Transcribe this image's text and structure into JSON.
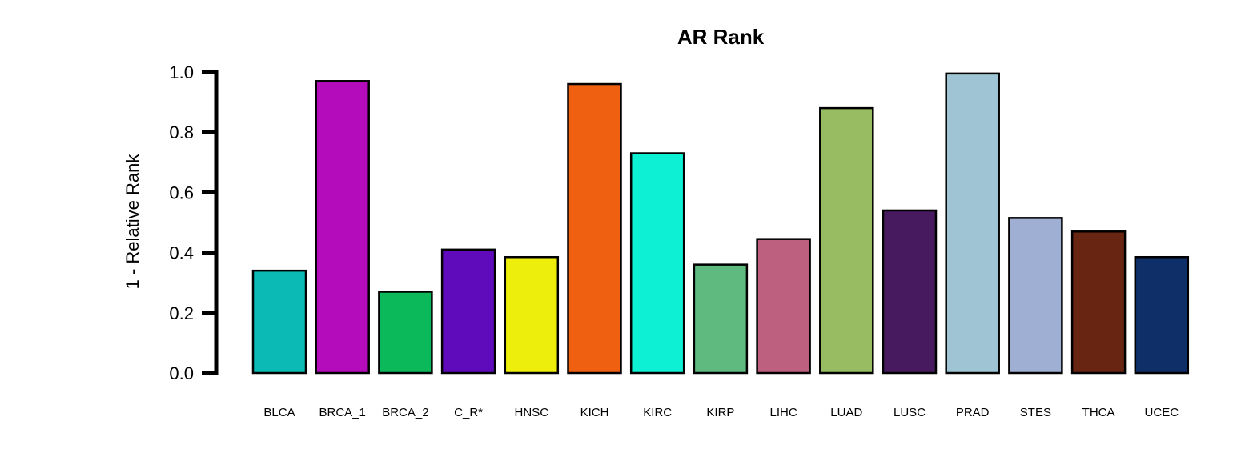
{
  "chart_data": {
    "type": "bar",
    "title": "AR Rank",
    "xlabel": "",
    "ylabel": "1 - Relative Rank",
    "ylim": [
      0,
      1
    ],
    "yticks": [
      "0.0",
      "0.2",
      "0.4",
      "0.6",
      "0.8",
      "1.0"
    ],
    "grid": false,
    "categories": [
      "BLCA",
      "BRCA_1",
      "BRCA_2",
      "C_R*",
      "HNSC",
      "KICH",
      "KIRC",
      "KIRP",
      "LIHC",
      "LUAD",
      "LUSC",
      "PRAD",
      "STES",
      "THCA",
      "UCEC"
    ],
    "values": [
      0.34,
      0.97,
      0.27,
      0.41,
      0.385,
      0.96,
      0.73,
      0.36,
      0.445,
      0.88,
      0.54,
      0.995,
      0.515,
      0.47,
      0.385
    ],
    "colors": [
      "#0bbab5",
      "#b40bbb",
      "#0bb95a",
      "#5f0bbb",
      "#edee0b",
      "#f06011",
      "#0ef0d3",
      "#5fba80",
      "#bd607f",
      "#97bc62",
      "#471a60",
      "#9fc5d4",
      "#9faed3",
      "#672512",
      "#0e2f67"
    ]
  }
}
